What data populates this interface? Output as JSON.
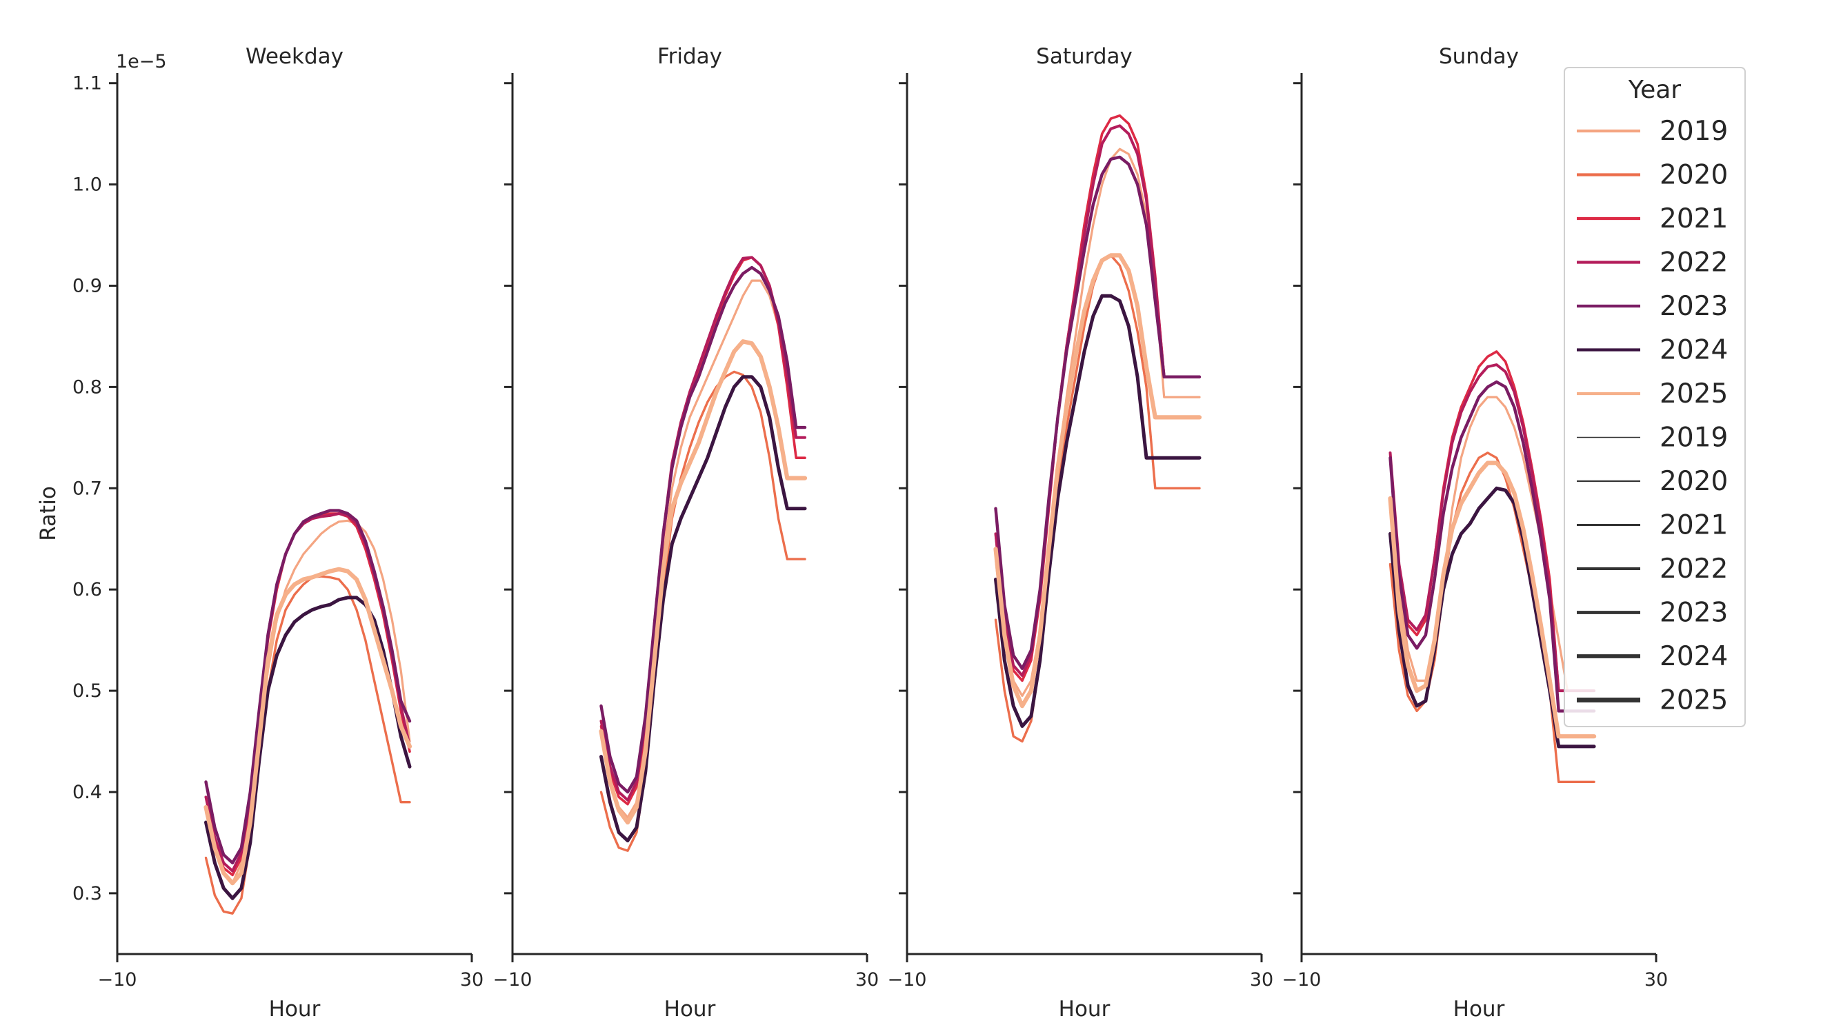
{
  "chart_data": {
    "type": "line",
    "offset_text": "1e−5",
    "ylabel": "Ratio",
    "ylim": [
      0.24,
      1.11
    ],
    "yticks": [
      0.3,
      0.4,
      0.5,
      0.6,
      0.7,
      0.8,
      0.9,
      1.0,
      1.1
    ],
    "ytick_labels": [
      "0.3",
      "0.4",
      "0.5",
      "0.6",
      "0.7",
      "0.8",
      "0.9",
      "1.0",
      "1.1"
    ],
    "xlabel": "Hour",
    "xlim": [
      -10,
      30
    ],
    "xticks": [
      -10,
      30
    ],
    "xtick_labels": [
      "−10",
      "30"
    ],
    "hours": [
      0,
      1,
      2,
      3,
      4,
      5,
      6,
      7,
      8,
      9,
      10,
      11,
      12,
      13,
      14,
      15,
      16,
      17,
      18,
      19,
      20,
      21,
      22,
      23
    ],
    "legend": {
      "title": "Year",
      "placement": "top-right",
      "hue_entries": [
        {
          "label": "2019",
          "color": "#f4a582"
        },
        {
          "label": "2020",
          "color": "#ec6e4c"
        },
        {
          "label": "2021",
          "color": "#dd2a45"
        },
        {
          "label": "2022",
          "color": "#b41d5b"
        },
        {
          "label": "2023",
          "color": "#7a1c63"
        },
        {
          "label": "2024",
          "color": "#3b1541"
        },
        {
          "label": "2025",
          "color": "#f6b08a"
        }
      ],
      "size_entries": [
        {
          "label": "2019"
        },
        {
          "label": "2020"
        },
        {
          "label": "2021"
        },
        {
          "label": "2022"
        },
        {
          "label": "2023"
        },
        {
          "label": "2024"
        },
        {
          "label": "2025"
        }
      ]
    },
    "panels": [
      {
        "title": "Weekday",
        "series": [
          {
            "name": "2019",
            "color": "#f4a582",
            "values": [
              0.38,
              0.345,
              0.32,
              0.31,
              0.33,
              0.38,
              0.45,
              0.52,
              0.57,
              0.6,
              0.62,
              0.635,
              0.645,
              0.655,
              0.662,
              0.667,
              0.668,
              0.665,
              0.657,
              0.64,
              0.61,
              0.57,
              0.52,
              0.45
            ]
          },
          {
            "name": "2020",
            "color": "#ec6e4c",
            "values": [
              0.335,
              0.298,
              0.282,
              0.28,
              0.295,
              0.35,
              0.43,
              0.5,
              0.55,
              0.58,
              0.595,
              0.605,
              0.612,
              0.613,
              0.612,
              0.61,
              0.6,
              0.58,
              0.55,
              0.51,
              0.47,
              0.43,
              0.39,
              0.39
            ]
          },
          {
            "name": "2021",
            "color": "#dd2a45",
            "values": [
              0.395,
              0.35,
              0.325,
              0.318,
              0.335,
              0.39,
              0.47,
              0.55,
              0.6,
              0.635,
              0.655,
              0.665,
              0.67,
              0.673,
              0.675,
              0.675,
              0.672,
              0.662,
              0.64,
              0.61,
              0.575,
              0.53,
              0.48,
              0.44
            ]
          },
          {
            "name": "2022",
            "color": "#b41d5b",
            "values": [
              0.395,
              0.355,
              0.33,
              0.322,
              0.34,
              0.395,
              0.475,
              0.555,
              0.605,
              0.635,
              0.655,
              0.665,
              0.67,
              0.672,
              0.673,
              0.675,
              0.673,
              0.665,
              0.645,
              0.615,
              0.58,
              0.535,
              0.485,
              0.445
            ]
          },
          {
            "name": "2023",
            "color": "#7a1c63",
            "values": [
              0.41,
              0.365,
              0.338,
              0.33,
              0.345,
              0.4,
              0.48,
              0.555,
              0.605,
              0.635,
              0.655,
              0.667,
              0.672,
              0.675,
              0.678,
              0.678,
              0.675,
              0.668,
              0.648,
              0.618,
              0.583,
              0.54,
              0.49,
              0.47
            ]
          },
          {
            "name": "2024",
            "color": "#3b1541",
            "values": [
              0.37,
              0.33,
              0.305,
              0.295,
              0.305,
              0.35,
              0.43,
              0.5,
              0.535,
              0.555,
              0.568,
              0.575,
              0.58,
              0.583,
              0.585,
              0.59,
              0.592,
              0.592,
              0.585,
              0.57,
              0.54,
              0.5,
              0.455,
              0.425
            ]
          },
          {
            "name": "2025",
            "color": "#f6b08a",
            "values": [
              0.385,
              0.345,
              0.32,
              0.31,
              0.32,
              0.37,
              0.45,
              0.53,
              0.575,
              0.595,
              0.605,
              0.61,
              0.612,
              0.615,
              0.618,
              0.62,
              0.618,
              0.61,
              0.59,
              0.56,
              0.53,
              0.5,
              0.465,
              0.445
            ]
          }
        ]
      },
      {
        "title": "Friday",
        "series": [
          {
            "name": "2019",
            "color": "#f4a582",
            "values": [
              0.455,
              0.41,
              0.385,
              0.375,
              0.39,
              0.45,
              0.54,
              0.63,
              0.7,
              0.74,
              0.77,
              0.79,
              0.81,
              0.83,
              0.85,
              0.87,
              0.89,
              0.905,
              0.905,
              0.89,
              0.86,
              0.82,
              0.75,
              0.75
            ]
          },
          {
            "name": "2020",
            "color": "#ec6e4c",
            "values": [
              0.4,
              0.365,
              0.345,
              0.342,
              0.36,
              0.42,
              0.51,
              0.6,
              0.67,
              0.71,
              0.74,
              0.765,
              0.785,
              0.8,
              0.81,
              0.815,
              0.812,
              0.8,
              0.775,
              0.73,
              0.67,
              0.63,
              0.63,
              0.63
            ]
          },
          {
            "name": "2021",
            "color": "#dd2a45",
            "values": [
              0.465,
              0.42,
              0.395,
              0.388,
              0.405,
              0.465,
              0.56,
              0.65,
              0.72,
              0.76,
              0.79,
              0.815,
              0.84,
              0.865,
              0.89,
              0.91,
              0.925,
              0.928,
              0.92,
              0.9,
              0.86,
              0.8,
              0.73,
              0.73
            ]
          },
          {
            "name": "2022",
            "color": "#b41d5b",
            "values": [
              0.47,
              0.425,
              0.4,
              0.392,
              0.41,
              0.47,
              0.565,
              0.655,
              0.725,
              0.765,
              0.795,
              0.82,
              0.845,
              0.87,
              0.893,
              0.913,
              0.927,
              0.928,
              0.92,
              0.9,
              0.865,
              0.81,
              0.75,
              0.75
            ]
          },
          {
            "name": "2023",
            "color": "#7a1c63",
            "values": [
              0.485,
              0.435,
              0.408,
              0.4,
              0.415,
              0.475,
              0.565,
              0.655,
              0.72,
              0.76,
              0.79,
              0.81,
              0.835,
              0.86,
              0.883,
              0.9,
              0.912,
              0.918,
              0.912,
              0.895,
              0.87,
              0.825,
              0.76,
              0.76
            ]
          },
          {
            "name": "2024",
            "color": "#3b1541",
            "values": [
              0.435,
              0.39,
              0.36,
              0.352,
              0.365,
              0.42,
              0.51,
              0.59,
              0.645,
              0.67,
              0.69,
              0.71,
              0.73,
              0.755,
              0.78,
              0.8,
              0.81,
              0.81,
              0.8,
              0.77,
              0.72,
              0.68,
              0.68,
              0.68
            ]
          },
          {
            "name": "2025",
            "color": "#f6b08a",
            "values": [
              0.46,
              0.41,
              0.382,
              0.37,
              0.385,
              0.44,
              0.53,
              0.62,
              0.68,
              0.705,
              0.725,
              0.745,
              0.77,
              0.795,
              0.815,
              0.835,
              0.845,
              0.843,
              0.83,
              0.8,
              0.76,
              0.71,
              0.71,
              0.71
            ]
          }
        ]
      },
      {
        "title": "Saturday",
        "series": [
          {
            "name": "2019",
            "color": "#f4a582",
            "values": [
              0.63,
              0.55,
              0.51,
              0.495,
              0.51,
              0.56,
              0.64,
              0.72,
              0.79,
              0.85,
              0.91,
              0.96,
              1.0,
              1.025,
              1.035,
              1.03,
              1.01,
              0.97,
              0.9,
              0.79,
              0.79,
              0.79,
              0.79,
              0.79
            ]
          },
          {
            "name": "2020",
            "color": "#ec6e4c",
            "values": [
              0.57,
              0.5,
              0.455,
              0.45,
              0.47,
              0.53,
              0.62,
              0.7,
              0.76,
              0.81,
              0.86,
              0.9,
              0.925,
              0.93,
              0.92,
              0.895,
              0.855,
              0.8,
              0.7,
              0.7,
              0.7,
              0.7,
              0.7,
              0.7
            ]
          },
          {
            "name": "2021",
            "color": "#dd2a45",
            "values": [
              0.655,
              0.565,
              0.52,
              0.51,
              0.53,
              0.59,
              0.68,
              0.77,
              0.84,
              0.9,
              0.96,
              1.01,
              1.05,
              1.065,
              1.068,
              1.06,
              1.04,
              0.99,
              0.91,
              0.81,
              0.81,
              0.81,
              0.81,
              0.81
            ]
          },
          {
            "name": "2022",
            "color": "#b41d5b",
            "values": [
              0.655,
              0.57,
              0.525,
              0.515,
              0.535,
              0.595,
              0.685,
              0.77,
              0.84,
              0.895,
              0.95,
              1.0,
              1.04,
              1.055,
              1.058,
              1.05,
              1.03,
              0.985,
              0.905,
              0.81,
              0.81,
              0.81,
              0.81,
              0.81
            ]
          },
          {
            "name": "2023",
            "color": "#7a1c63",
            "values": [
              0.68,
              0.585,
              0.535,
              0.522,
              0.54,
              0.6,
              0.69,
              0.77,
              0.835,
              0.885,
              0.935,
              0.98,
              1.01,
              1.025,
              1.027,
              1.02,
              1.0,
              0.96,
              0.885,
              0.81,
              0.81,
              0.81,
              0.81,
              0.81
            ]
          },
          {
            "name": "2024",
            "color": "#3b1541",
            "values": [
              0.61,
              0.53,
              0.485,
              0.465,
              0.475,
              0.53,
              0.615,
              0.69,
              0.745,
              0.79,
              0.835,
              0.87,
              0.89,
              0.89,
              0.885,
              0.86,
              0.81,
              0.73,
              0.73,
              0.73,
              0.73,
              0.73,
              0.73,
              0.73
            ]
          },
          {
            "name": "2025",
            "color": "#f6b08a",
            "values": [
              0.64,
              0.555,
              0.505,
              0.485,
              0.5,
              0.555,
              0.64,
              0.72,
              0.78,
              0.83,
              0.875,
              0.905,
              0.925,
              0.93,
              0.93,
              0.915,
              0.88,
              0.82,
              0.77,
              0.77,
              0.77,
              0.77,
              0.77,
              0.77
            ]
          }
        ]
      },
      {
        "title": "Sunday",
        "series": [
          {
            "name": "2019",
            "color": "#f4a582",
            "values": [
              0.69,
              0.6,
              0.54,
              0.51,
              0.51,
              0.54,
              0.61,
              0.68,
              0.73,
              0.76,
              0.78,
              0.79,
              0.79,
              0.78,
              0.76,
              0.73,
              0.69,
              0.65,
              0.6,
              0.55,
              0.5,
              0.5,
              0.5,
              0.5
            ]
          },
          {
            "name": "2020",
            "color": "#ec6e4c",
            "values": [
              0.625,
              0.54,
              0.495,
              0.48,
              0.49,
              0.53,
              0.6,
              0.66,
              0.695,
              0.715,
              0.73,
              0.735,
              0.73,
              0.71,
              0.68,
              0.64,
              0.6,
              0.55,
              0.5,
              0.41,
              0.41,
              0.41,
              0.41,
              0.41
            ]
          },
          {
            "name": "2021",
            "color": "#dd2a45",
            "values": [
              0.73,
              0.62,
              0.565,
              0.555,
              0.57,
              0.63,
              0.7,
              0.75,
              0.78,
              0.8,
              0.82,
              0.83,
              0.835,
              0.825,
              0.8,
              0.765,
              0.72,
              0.67,
              0.61,
              0.5,
              0.5,
              0.5,
              0.5,
              0.5
            ]
          },
          {
            "name": "2022",
            "color": "#b41d5b",
            "values": [
              0.735,
              0.625,
              0.57,
              0.56,
              0.575,
              0.63,
              0.695,
              0.745,
              0.775,
              0.795,
              0.81,
              0.82,
              0.822,
              0.815,
              0.795,
              0.76,
              0.715,
              0.665,
              0.6,
              0.5,
              0.5,
              0.5,
              0.5,
              0.5
            ]
          },
          {
            "name": "2023",
            "color": "#7a1c63",
            "values": [
              0.73,
              0.615,
              0.555,
              0.542,
              0.555,
              0.61,
              0.675,
              0.72,
              0.75,
              0.77,
              0.79,
              0.8,
              0.805,
              0.8,
              0.78,
              0.745,
              0.7,
              0.65,
              0.59,
              0.48,
              0.48,
              0.48,
              0.48,
              0.48
            ]
          },
          {
            "name": "2024",
            "color": "#3b1541",
            "values": [
              0.655,
              0.56,
              0.505,
              0.485,
              0.49,
              0.54,
              0.6,
              0.635,
              0.655,
              0.665,
              0.68,
              0.69,
              0.7,
              0.698,
              0.685,
              0.65,
              0.6,
              0.55,
              0.5,
              0.445,
              0.445,
              0.445,
              0.445,
              0.445
            ]
          },
          {
            "name": "2025",
            "color": "#f6b08a",
            "values": [
              0.69,
              0.58,
              0.525,
              0.5,
              0.505,
              0.55,
              0.615,
              0.66,
              0.685,
              0.7,
              0.715,
              0.725,
              0.725,
              0.715,
              0.695,
              0.66,
              0.615,
              0.565,
              0.51,
              0.455,
              0.455,
              0.455,
              0.455,
              0.455
            ]
          }
        ]
      }
    ]
  }
}
